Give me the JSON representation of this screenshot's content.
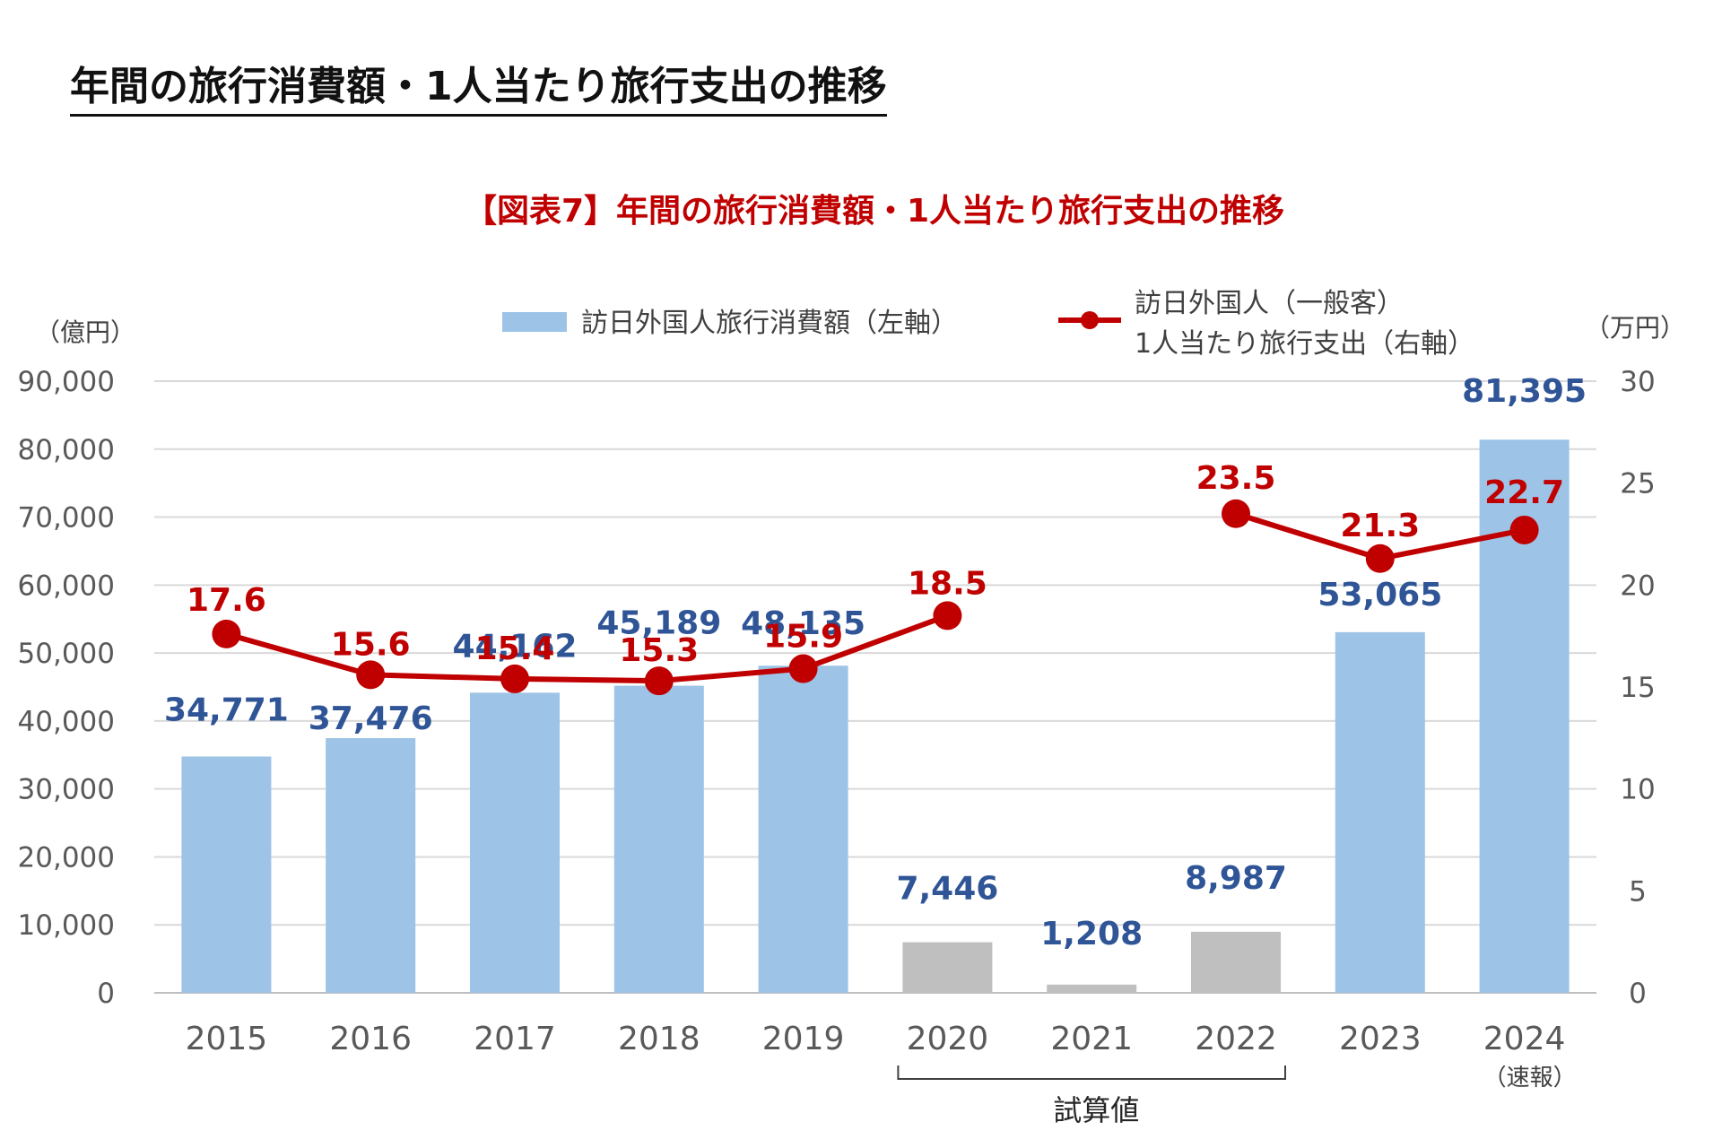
{
  "page": {
    "heading": "年間の旅行消費額・1人当たり旅行支出の推移"
  },
  "chart_data": {
    "type": "bar",
    "title": "【図表7】年間の旅行消費額・1人当たり旅行支出の推移",
    "categories": [
      "2015",
      "2016",
      "2017",
      "2018",
      "2019",
      "2020",
      "2021",
      "2022",
      "2023",
      "2024"
    ],
    "category_sublabels": {
      "2024": "（速報）"
    },
    "bracket": {
      "from": "2020",
      "to": "2022",
      "label": "試算値"
    },
    "y_left": {
      "unit": "（億円）",
      "min": 0,
      "max": 90000,
      "ticks": [
        "0",
        "10,000",
        "20,000",
        "30,000",
        "40,000",
        "50,000",
        "60,000",
        "70,000",
        "80,000",
        "90,000"
      ]
    },
    "y_right": {
      "unit": "（万円）",
      "min": 0,
      "max": 30,
      "ticks": [
        "0",
        "5",
        "10",
        "15",
        "20",
        "25",
        "30"
      ]
    },
    "grid": true,
    "legend_position": "top",
    "series": [
      {
        "name": "訪日外国人旅行消費額（左軸）",
        "type": "bar",
        "axis": "left",
        "color": "#9dc3e6",
        "estimate_color": "#bfbfbf",
        "estimate_categories": [
          "2020",
          "2021",
          "2022"
        ],
        "label_color": "#2f5597",
        "values": [
          34771,
          37476,
          44162,
          45189,
          48135,
          7446,
          1208,
          8987,
          53065,
          81395
        ],
        "labels": [
          "34,771",
          "37,476",
          "44,162",
          "45,189",
          "48,135",
          "7,446",
          "1,208",
          "8,987",
          "53,065",
          "81,395"
        ]
      },
      {
        "name": "訪日外国人（一般客）1人当たり旅行支出（右軸）",
        "name_lines": [
          "訪日外国人（一般客）",
          "1人当たり旅行支出（右軸）"
        ],
        "type": "line",
        "axis": "right",
        "color": "#c00000",
        "values": [
          17.6,
          15.6,
          15.4,
          15.3,
          15.9,
          18.5,
          null,
          23.5,
          21.3,
          22.7
        ],
        "labels": [
          "17.6",
          "15.6",
          "15.4",
          "15.3",
          "15.9",
          "18.5",
          "",
          "23.5",
          "21.3",
          "22.7"
        ]
      }
    ]
  }
}
